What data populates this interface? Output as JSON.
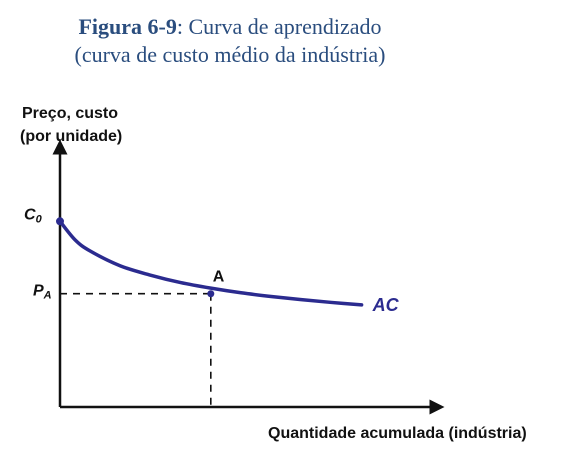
{
  "figure": {
    "title_bold": "Figura 6-9",
    "title_rest": ": Curva de aprendizado",
    "subtitle": "(curva de custo médio da indústria)"
  },
  "chart_data": {
    "type": "line",
    "title": "Figura 6-9: Curva de aprendizado (curva de custo médio da indústria)",
    "ylabel_line1": "Preço, custo",
    "ylabel_line2": "(por unidade)",
    "xlabel": "Quantidade acumulada (indústria)",
    "curve_color": "#2b2b8f",
    "series": [
      {
        "name": "AC",
        "x": [
          0,
          0.5,
          1,
          2,
          3,
          4,
          5,
          6,
          7,
          8,
          9,
          10
        ],
        "y": [
          1.0,
          0.9,
          0.84,
          0.76,
          0.71,
          0.67,
          0.64,
          0.615,
          0.595,
          0.578,
          0.563,
          0.55
        ]
      }
    ],
    "xlim": [
      0,
      12.5
    ],
    "ylim": [
      0,
      1.4
    ],
    "grid": false,
    "annotations": {
      "c0_main": "C",
      "c0_sub": "0",
      "pa_main": "P",
      "pa_sub": "A",
      "point_label": "A",
      "point": {
        "x": 5,
        "y": 0.61
      }
    }
  }
}
